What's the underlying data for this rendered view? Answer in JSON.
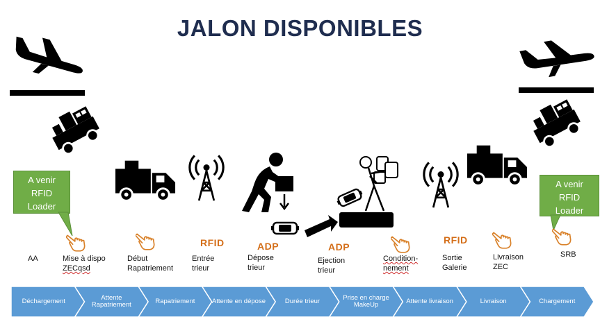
{
  "title": "JALON DISPONIBLES",
  "callouts": {
    "left": [
      "A venir",
      "RFID",
      "Loader"
    ],
    "right": [
      "A venir",
      "RFID",
      "Loader"
    ]
  },
  "tags": {
    "rfid_1": "RFID",
    "adp_1": "ADP",
    "adp_2": "ADP",
    "adp_arrow": "ADP",
    "rfid_2": "RFID"
  },
  "milestones": {
    "aa": "AA",
    "mise_line1": "Mise à dispo",
    "mise_line2": "ZECqsd",
    "debut_line1": "Début",
    "debut_line2": "Rapatriement",
    "entree_line1": "Entrée",
    "entree_line2": "trieur",
    "depose_line1": "Dépose",
    "depose_line2": "trieur",
    "ejection_line1": "Ejection",
    "ejection_line2": "trieur",
    "cond_line1": "Condition-",
    "cond_line2": "nement",
    "sortie_line1": "Sortie",
    "sortie_line2": "Galerie",
    "livraison_line1": "Livraison",
    "livraison_line2": "ZEC",
    "srb": "SRB"
  },
  "process_steps": [
    "Déchargement",
    "Attente Rapatriement",
    "Rapatriement",
    "Attente en dépose",
    "Durée trieur",
    "Prise en charge MakeUp",
    "Attente livraison",
    "Livraison",
    "Chargement"
  ],
  "icons": [
    "plane-landing-icon",
    "plane-takeoff-icon",
    "baggage-tractor-icon",
    "truck-icon",
    "rfid-antenna-icon",
    "worker-lifting-box-icon",
    "baggage-icon",
    "conveyor-icon",
    "person-carrying-luggage-icon",
    "hand-pointer-icon"
  ],
  "colors": {
    "callout": "#70ad47",
    "tag": "#d46f1a",
    "process": "#5b9bd5",
    "title": "#1f2d4f"
  }
}
